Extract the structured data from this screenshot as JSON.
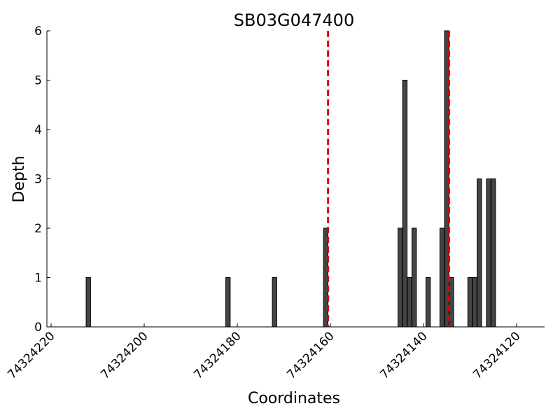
{
  "chart_data": {
    "type": "bar",
    "title": "SB03G047400",
    "xlabel": "Coordinates",
    "ylabel": "Depth",
    "x_reversed": true,
    "xlim": [
      74324220,
      74324120
    ],
    "ylim": [
      0,
      6
    ],
    "x_ticks": [
      74324220,
      74324200,
      74324180,
      74324160,
      74324140,
      74324120
    ],
    "y_ticks": [
      0,
      1,
      2,
      3,
      4,
      5,
      6
    ],
    "grid": false,
    "legend": "none",
    "bar_color": "#444444",
    "bars": [
      {
        "x": 74324212,
        "depth": 1
      },
      {
        "x": 74324182,
        "depth": 1
      },
      {
        "x": 74324172,
        "depth": 1
      },
      {
        "x": 74324161,
        "depth": 2
      },
      {
        "x": 74324145,
        "depth": 2
      },
      {
        "x": 74324144,
        "depth": 5
      },
      {
        "x": 74324143,
        "depth": 1
      },
      {
        "x": 74324142,
        "depth": 2
      },
      {
        "x": 74324139,
        "depth": 1
      },
      {
        "x": 74324136,
        "depth": 2
      },
      {
        "x": 74324135,
        "depth": 6
      },
      {
        "x": 74324134,
        "depth": 1
      },
      {
        "x": 74324130,
        "depth": 1
      },
      {
        "x": 74324129,
        "depth": 1
      },
      {
        "x": 74324128,
        "depth": 3
      },
      {
        "x": 74324126,
        "depth": 3
      },
      {
        "x": 74324125,
        "depth": 3
      }
    ],
    "markers": [
      {
        "x": 74324160.5,
        "color": "#dd0000",
        "style": "dashed"
      },
      {
        "x": 74324134.5,
        "color": "#dd0000",
        "style": "dashed"
      }
    ]
  }
}
